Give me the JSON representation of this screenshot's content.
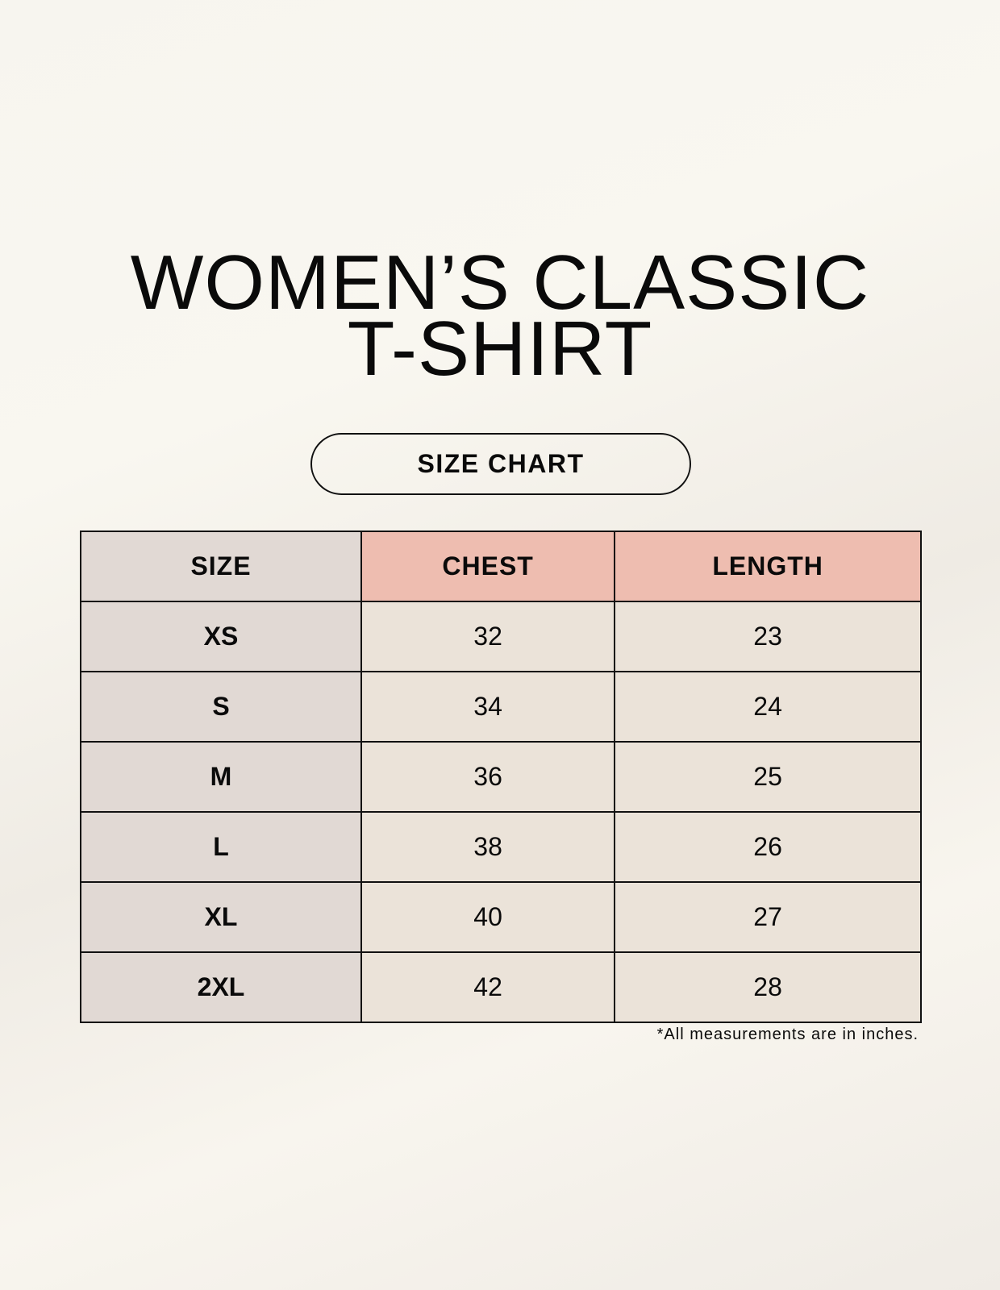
{
  "title_line1": "WOMEN’S CLASSIC",
  "title_line2": "T-SHIRT",
  "badge": "SIZE CHART",
  "table": {
    "headers": [
      "SIZE",
      "CHEST",
      "LENGTH"
    ],
    "rows": [
      [
        "XS",
        "32",
        "23"
      ],
      [
        "S",
        "34",
        "24"
      ],
      [
        "M",
        "36",
        "25"
      ],
      [
        "L",
        "38",
        "26"
      ],
      [
        "XL",
        "40",
        "27"
      ],
      [
        "2XL",
        "42",
        "28"
      ]
    ]
  },
  "footnote": "*All measurements are in inches.",
  "colors": {
    "size_column": "#e1d9d4",
    "header_accent": "#eebdb0",
    "value_cells": "#ebe3d9"
  }
}
